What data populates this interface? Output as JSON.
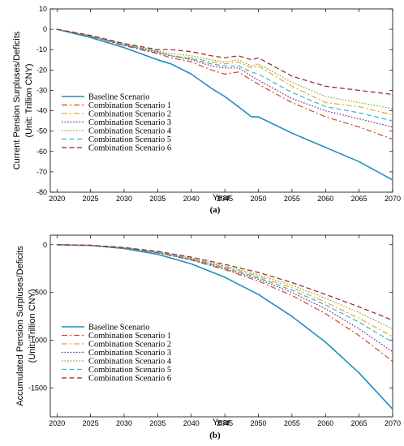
{
  "chart_data": [
    {
      "type": "line",
      "panel_label": "(a)",
      "xlabel": "Year",
      "ylabel": "Current Pension Surpluses/Deficits",
      "ylabel_unit": "(Unit: Trillion CNY)",
      "xlim": [
        2019,
        2070
      ],
      "ylim": [
        -80,
        10
      ],
      "xticks": [
        2020,
        2025,
        2030,
        2035,
        2040,
        2045,
        2050,
        2055,
        2060,
        2065,
        2070
      ],
      "yticks": [
        10,
        0,
        -10,
        -20,
        -30,
        -40,
        -50,
        -60,
        -70,
        -80
      ],
      "legend_position": "bottom-left",
      "grid": false,
      "x": [
        2020,
        2025,
        2030,
        2035,
        2037,
        2040,
        2043,
        2045,
        2047,
        2049,
        2050,
        2055,
        2060,
        2065,
        2070
      ],
      "series": [
        {
          "name": "Baseline Scenario",
          "color": "#1f8dc4",
          "dash": "solid",
          "values": [
            0,
            -4,
            -9,
            -15,
            -17,
            -22,
            -29,
            -33,
            -38,
            -43,
            -43,
            -51,
            -58,
            -65,
            -74
          ]
        },
        {
          "name": "Combination Scenario 1",
          "color": "#d6451a",
          "dash": "dashdot",
          "values": [
            0,
            -3.5,
            -8,
            -12,
            -14,
            -16,
            -20,
            -22,
            -21,
            -25,
            -27,
            -36,
            -43,
            -48,
            -54
          ]
        },
        {
          "name": "Combination Scenario 2",
          "color": "#f2a41f",
          "dash": "dashdot",
          "values": [
            0,
            -3.3,
            -7.5,
            -11,
            -13,
            -14,
            -16,
            -17,
            -16,
            -19,
            -18,
            -28,
            -36,
            -38,
            -42
          ]
        },
        {
          "name": "Combination Scenario 3",
          "color": "#6b2d8a",
          "dash": "dotted",
          "values": [
            0,
            -3.4,
            -7.8,
            -11.5,
            -13,
            -15,
            -18,
            -19,
            -19,
            -23,
            -25,
            -34,
            -40,
            -44,
            -48
          ]
        },
        {
          "name": "Combination Scenario 4",
          "color": "#7aad2e",
          "dash": "dotted",
          "values": [
            0,
            -3.2,
            -7.3,
            -10.5,
            -12,
            -13,
            -15,
            -16,
            -15,
            -18,
            -17,
            -26,
            -33,
            -36,
            -39
          ]
        },
        {
          "name": "Combination Scenario 5",
          "color": "#33b5d9",
          "dash": "dashed",
          "values": [
            0,
            -3.3,
            -7.6,
            -11,
            -13,
            -14.5,
            -17,
            -18,
            -18,
            -21,
            -22,
            -31,
            -38,
            -41,
            -45
          ]
        },
        {
          "name": "Combination Scenario 6",
          "color": "#9c1c2c",
          "dash": "dashed",
          "values": [
            0,
            -3,
            -7,
            -10,
            -10,
            -11,
            -13,
            -14,
            -13,
            -15,
            -14,
            -23,
            -28,
            -30,
            -32
          ]
        }
      ]
    },
    {
      "type": "line",
      "panel_label": "(b)",
      "xlabel": "Year",
      "ylabel": "Accumulated Pension Surpluses/Deficits",
      "ylabel_unit": "(Unit: Trillion CNY)",
      "xlim": [
        2019,
        2070
      ],
      "ylim": [
        -1800,
        100
      ],
      "xticks": [
        2020,
        2025,
        2030,
        2035,
        2040,
        2045,
        2050,
        2055,
        2060,
        2065,
        2070
      ],
      "yticks": [
        0,
        -500,
        -1000,
        -1500
      ],
      "legend_position": "bottom-left",
      "grid": false,
      "x": [
        2020,
        2025,
        2030,
        2035,
        2040,
        2045,
        2050,
        2055,
        2060,
        2065,
        2070
      ],
      "series": [
        {
          "name": "Baseline Scenario",
          "color": "#1f8dc4",
          "dash": "solid",
          "values": [
            0,
            -8,
            -40,
            -100,
            -200,
            -340,
            -520,
            -750,
            -1020,
            -1340,
            -1720
          ]
        },
        {
          "name": "Combination Scenario 1",
          "color": "#d6451a",
          "dash": "dashdot",
          "values": [
            0,
            -7,
            -35,
            -85,
            -160,
            -260,
            -380,
            -530,
            -720,
            -950,
            -1220
          ]
        },
        {
          "name": "Combination Scenario 2",
          "color": "#f2a41f",
          "dash": "dashdot",
          "values": [
            0,
            -6,
            -32,
            -78,
            -145,
            -230,
            -330,
            -450,
            -600,
            -770,
            -960
          ]
        },
        {
          "name": "Combination Scenario 3",
          "color": "#6b2d8a",
          "dash": "dotted",
          "values": [
            0,
            -7,
            -34,
            -82,
            -155,
            -250,
            -360,
            -500,
            -670,
            -880,
            -1120
          ]
        },
        {
          "name": "Combination Scenario 4",
          "color": "#7aad2e",
          "dash": "dotted",
          "values": [
            0,
            -6,
            -31,
            -75,
            -140,
            -220,
            -315,
            -425,
            -560,
            -710,
            -880
          ]
        },
        {
          "name": "Combination Scenario 5",
          "color": "#33b5d9",
          "dash": "dashed",
          "values": [
            0,
            -6,
            -33,
            -80,
            -150,
            -240,
            -345,
            -475,
            -630,
            -810,
            -1020
          ]
        },
        {
          "name": "Combination Scenario 6",
          "color": "#9c1c2c",
          "dash": "dashed",
          "values": [
            0,
            -5,
            -29,
            -70,
            -130,
            -205,
            -290,
            -395,
            -520,
            -650,
            -790
          ]
        }
      ]
    }
  ]
}
